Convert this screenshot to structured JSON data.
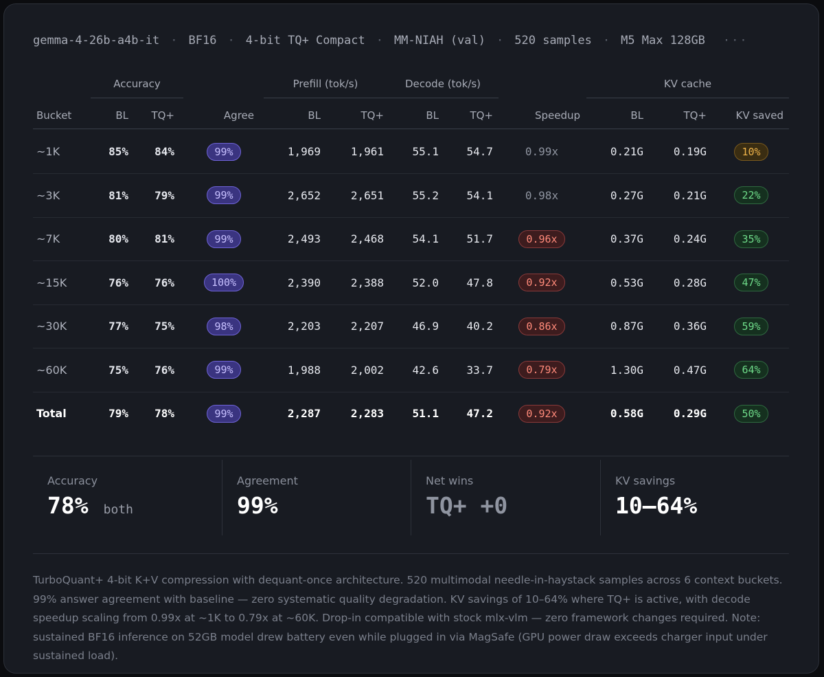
{
  "meta": {
    "items": [
      "gemma-4-26b-a4b-it",
      "BF16",
      "4-bit TQ+ Compact",
      "MM-NIAH (val)",
      "520 samples",
      "M5 Max 128GB"
    ],
    "separator": "·",
    "more": "···"
  },
  "table": {
    "groups": {
      "accuracy": "Accuracy",
      "prefill": "Prefill (tok/s)",
      "decode": "Decode (tok/s)",
      "kv": "KV cache"
    },
    "columns": {
      "bucket": "Bucket",
      "acc_bl": "BL",
      "acc_tq": "TQ+",
      "agree": "Agree",
      "pre_bl": "BL",
      "pre_tq": "TQ+",
      "dec_bl": "BL",
      "dec_tq": "TQ+",
      "speedup": "Speedup",
      "kv_bl": "BL",
      "kv_tq": "TQ+",
      "kv_saved": "KV saved"
    },
    "rows": [
      {
        "bucket": "~1K",
        "acc_bl": "85%",
        "acc_tq": "84%",
        "agree": "99%",
        "pre_bl": "1,969",
        "pre_tq": "1,961",
        "dec_bl": "55.1",
        "dec_tq": "54.7",
        "speedup": "0.99x",
        "kv_bl": "0.21G",
        "kv_tq": "0.19G",
        "kv_saved": "10%"
      },
      {
        "bucket": "~3K",
        "acc_bl": "81%",
        "acc_tq": "79%",
        "agree": "99%",
        "pre_bl": "2,652",
        "pre_tq": "2,651",
        "dec_bl": "55.2",
        "dec_tq": "54.1",
        "speedup": "0.98x",
        "kv_bl": "0.27G",
        "kv_tq": "0.21G",
        "kv_saved": "22%"
      },
      {
        "bucket": "~7K",
        "acc_bl": "80%",
        "acc_tq": "81%",
        "agree": "99%",
        "pre_bl": "2,493",
        "pre_tq": "2,468",
        "dec_bl": "54.1",
        "dec_tq": "51.7",
        "speedup": "0.96x",
        "kv_bl": "0.37G",
        "kv_tq": "0.24G",
        "kv_saved": "35%"
      },
      {
        "bucket": "~15K",
        "acc_bl": "76%",
        "acc_tq": "76%",
        "agree": "100%",
        "pre_bl": "2,390",
        "pre_tq": "2,388",
        "dec_bl": "52.0",
        "dec_tq": "47.8",
        "speedup": "0.92x",
        "kv_bl": "0.53G",
        "kv_tq": "0.28G",
        "kv_saved": "47%"
      },
      {
        "bucket": "~30K",
        "acc_bl": "77%",
        "acc_tq": "75%",
        "agree": "98%",
        "pre_bl": "2,203",
        "pre_tq": "2,207",
        "dec_bl": "46.9",
        "dec_tq": "40.2",
        "speedup": "0.86x",
        "kv_bl": "0.87G",
        "kv_tq": "0.36G",
        "kv_saved": "59%"
      },
      {
        "bucket": "~60K",
        "acc_bl": "75%",
        "acc_tq": "76%",
        "agree": "99%",
        "pre_bl": "1,988",
        "pre_tq": "2,002",
        "dec_bl": "42.6",
        "dec_tq": "33.7",
        "speedup": "0.79x",
        "kv_bl": "1.30G",
        "kv_tq": "0.47G",
        "kv_saved": "64%"
      }
    ],
    "total": {
      "bucket": "Total",
      "acc_bl": "79%",
      "acc_tq": "78%",
      "agree": "99%",
      "pre_bl": "2,287",
      "pre_tq": "2,283",
      "dec_bl": "51.1",
      "dec_tq": "47.2",
      "speedup": "0.92x",
      "kv_bl": "0.58G",
      "kv_tq": "0.29G",
      "kv_saved": "50%"
    }
  },
  "summary": {
    "accuracy": {
      "label": "Accuracy",
      "value": "78%",
      "sub": "both"
    },
    "agreement": {
      "label": "Agreement",
      "value": "99%"
    },
    "net_wins": {
      "label": "Net wins",
      "value": "TQ+ +0"
    },
    "kv_savings": {
      "label": "KV savings",
      "value": "10–64%"
    }
  },
  "note": "TurboQuant+ 4-bit K+V compression with dequant-once architecture. 520 multimodal needle-in-haystack samples across 6 context buckets. 99% answer agreement with baseline — zero systematic quality degradation. KV savings of 10–64% where TQ+ is active, with decode speedup scaling from 0.99x at ~1K to 0.79x at ~60K. Drop-in compatible with stock mlx-vlm — zero framework changes required. Note: sustained BF16 inference on 52GB model drew battery even while plugged in via MagSafe (GPU power draw exceeds charger input under sustained load).",
  "colors": {
    "card_bg": "#181b22",
    "agree_pill": "#3a3480",
    "speedup_red": "#ff8a7a",
    "kv_amber": "#f0b44a",
    "kv_green": "#6fdc8a"
  }
}
